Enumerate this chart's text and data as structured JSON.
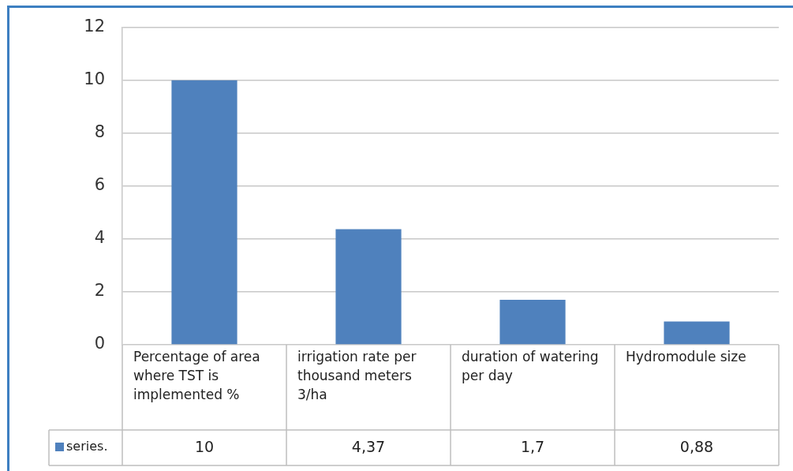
{
  "chart_data": {
    "type": "bar",
    "categories": [
      "Percentage of area where TST is implemented %",
      "irrigation rate per thousand meters 3/ha",
      "duration of watering per day",
      "Hydromodule size"
    ],
    "series": [
      {
        "name": "series.",
        "color": "#4f81bd",
        "values": [
          10,
          4.37,
          1.7,
          0.88
        ],
        "value_labels": [
          "10",
          "4,37",
          "1,7",
          "0,88"
        ]
      }
    ],
    "ylim": [
      0,
      12
    ],
    "yticks": [
      0,
      2,
      4,
      6,
      8,
      10,
      12
    ],
    "grid": "y",
    "legend": "bottom left"
  }
}
